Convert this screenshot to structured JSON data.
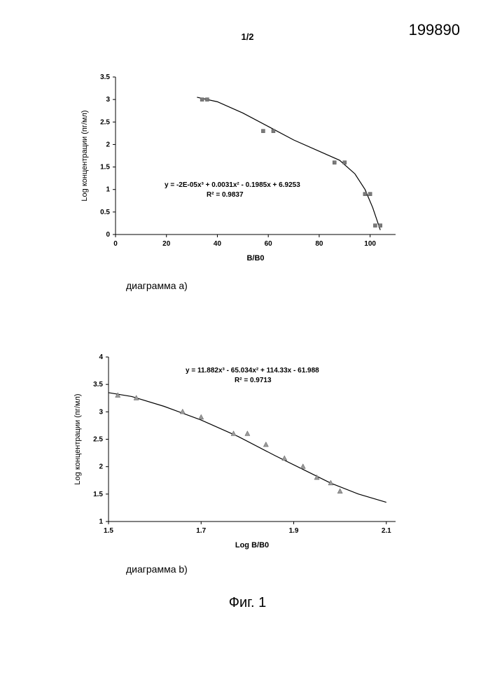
{
  "page": {
    "number": "1/2",
    "doc_id": "199890",
    "figure_label": "Фиг. 1"
  },
  "chart_a": {
    "type": "scatter+line",
    "caption": "диаграмма a)",
    "xlabel": "B/B0",
    "ylabel": "Log концентрации (пг/мл)",
    "xlim": [
      0,
      110
    ],
    "ylim": [
      0,
      3.5
    ],
    "xtick_step": 20,
    "ytick_step": 0.5,
    "xticks": [
      0,
      20,
      40,
      60,
      80,
      100
    ],
    "yticks": [
      0,
      0.5,
      1,
      1.5,
      2,
      2.5,
      3,
      3.5
    ],
    "equation": "y = -2E-05x³ + 0.0031x² - 0.1985x + 6.9253",
    "r2": "R² = 0.9837",
    "equation_fontsize": 10,
    "label_fontsize": 11,
    "tick_fontsize": 10,
    "marker_color": "#7a7a7a",
    "marker_size": 5,
    "line_color": "#000000",
    "line_width": 1.2,
    "background_color": "#ffffff",
    "points_pairs": [
      {
        "x": 34,
        "y": 3.0
      },
      {
        "x": 36,
        "y": 3.0
      },
      {
        "x": 58,
        "y": 2.3
      },
      {
        "x": 62,
        "y": 2.3
      },
      {
        "x": 86,
        "y": 1.6
      },
      {
        "x": 90,
        "y": 1.6
      },
      {
        "x": 98,
        "y": 0.9
      },
      {
        "x": 100,
        "y": 0.9
      },
      {
        "x": 102,
        "y": 0.2
      },
      {
        "x": 104,
        "y": 0.2
      }
    ],
    "curve": [
      {
        "x": 32,
        "y": 3.05
      },
      {
        "x": 40,
        "y": 2.95
      },
      {
        "x": 50,
        "y": 2.7
      },
      {
        "x": 60,
        "y": 2.4
      },
      {
        "x": 70,
        "y": 2.1
      },
      {
        "x": 80,
        "y": 1.85
      },
      {
        "x": 88,
        "y": 1.65
      },
      {
        "x": 94,
        "y": 1.35
      },
      {
        "x": 98,
        "y": 1.0
      },
      {
        "x": 101,
        "y": 0.6
      },
      {
        "x": 104,
        "y": 0.1
      }
    ]
  },
  "chart_b": {
    "type": "scatter+line",
    "caption": "диаграмма b)",
    "xlabel": "Log B/B0",
    "ylabel": "Log концентрации (пг/мл)",
    "xlim": [
      1.5,
      2.12
    ],
    "ylim": [
      1,
      4
    ],
    "xticks": [
      1.5,
      1.7,
      1.9,
      2.1
    ],
    "yticks": [
      1,
      1.5,
      2,
      2.5,
      3,
      3.5,
      4
    ],
    "equation": "y = 11.882x³ - 65.034x² + 114.33x - 61.988",
    "r2": "R² = 0.9713",
    "equation_fontsize": 10,
    "label_fontsize": 11,
    "tick_fontsize": 10,
    "marker_color": "#9a9a9a",
    "marker_shape": "triangle",
    "marker_size": 6,
    "line_color": "#000000",
    "line_width": 1.2,
    "background_color": "#ffffff",
    "points": [
      {
        "x": 1.52,
        "y": 3.3
      },
      {
        "x": 1.56,
        "y": 3.25
      },
      {
        "x": 1.66,
        "y": 3.0
      },
      {
        "x": 1.7,
        "y": 2.9
      },
      {
        "x": 1.77,
        "y": 2.6
      },
      {
        "x": 1.8,
        "y": 2.6
      },
      {
        "x": 1.84,
        "y": 2.4
      },
      {
        "x": 1.88,
        "y": 2.15
      },
      {
        "x": 1.92,
        "y": 2.0
      },
      {
        "x": 1.95,
        "y": 1.8
      },
      {
        "x": 1.98,
        "y": 1.7
      },
      {
        "x": 2.0,
        "y": 1.55
      }
    ],
    "curve": [
      {
        "x": 1.5,
        "y": 3.35
      },
      {
        "x": 1.55,
        "y": 3.28
      },
      {
        "x": 1.62,
        "y": 3.1
      },
      {
        "x": 1.7,
        "y": 2.85
      },
      {
        "x": 1.78,
        "y": 2.55
      },
      {
        "x": 1.86,
        "y": 2.2
      },
      {
        "x": 1.92,
        "y": 1.95
      },
      {
        "x": 1.98,
        "y": 1.7
      },
      {
        "x": 2.04,
        "y": 1.5
      },
      {
        "x": 2.1,
        "y": 1.35
      }
    ]
  }
}
